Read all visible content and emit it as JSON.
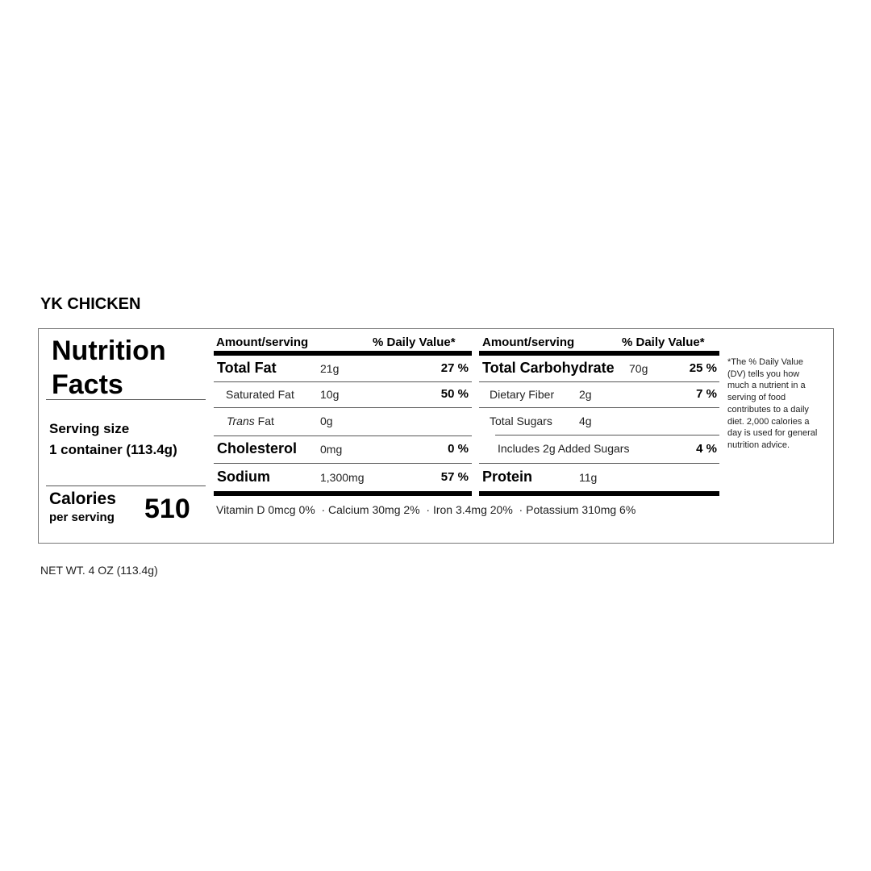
{
  "product_name": "YK CHICKEN",
  "label": {
    "heading_line1": "Nutrition",
    "heading_line2": "Facts",
    "serving_size_label": "Serving size",
    "serving_size_value": "1 container (113.4g)",
    "calories_label": "Calories",
    "calories_sub": "per serving",
    "calories_value": "510",
    "left_table": {
      "header_amount": "Amount/serving",
      "header_dv": "% Daily Value*",
      "rows": [
        {
          "name": "Total Fat",
          "amount": "21g",
          "dv": "27 %"
        },
        {
          "name": "Saturated Fat",
          "amount": "10g",
          "dv": "50 %"
        },
        {
          "name_italic": "Trans",
          "name": "Fat",
          "amount": "0g",
          "dv": ""
        },
        {
          "name": "Cholesterol",
          "amount": "0mg",
          "dv": "0 %"
        },
        {
          "name": "Sodium",
          "amount": "1,300mg",
          "dv": "57 %"
        }
      ]
    },
    "right_table": {
      "header_amount": "Amount/serving",
      "header_dv": "% Daily Value*",
      "rows": [
        {
          "name": "Total Carbohydrate",
          "amount": "70g",
          "dv": "25 %"
        },
        {
          "name": "Dietary Fiber",
          "amount": "2g",
          "dv": "7 %"
        },
        {
          "name": "Total Sugars",
          "amount": "4g",
          "dv": ""
        },
        {
          "name": "Includes 2g Added Sugars",
          "amount": "",
          "dv": "4 %"
        },
        {
          "name": "Protein",
          "amount": "11g",
          "dv": ""
        }
      ]
    },
    "vitamins": "Vitamin D 0mcg 0%  · Calcium 30mg 2%  · Iron 3.4mg 20%  · Potassium 310mg 6%",
    "footnote": "*The % Daily Value (DV) tells you how much a nutrient in a serving of food contributes to a daily diet. 2,000 calories a day is used for general nutrition advice."
  },
  "net_weight": "NET WT. 4 OZ (113.4g)"
}
